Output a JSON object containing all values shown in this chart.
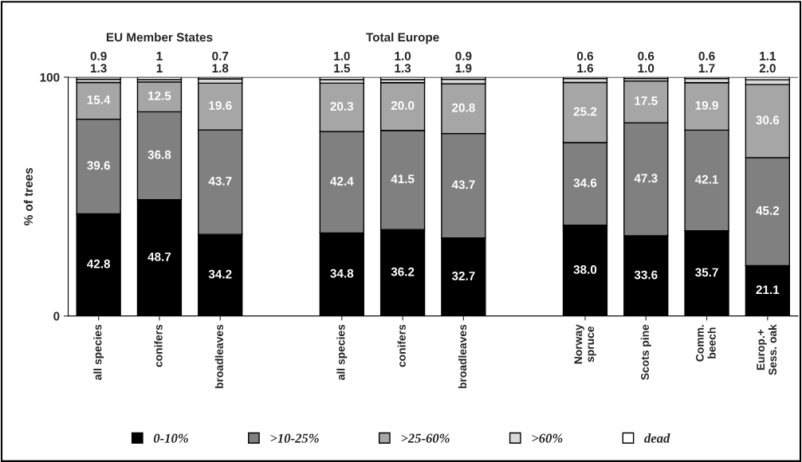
{
  "chart_data": {
    "type": "bar",
    "stacked": true,
    "ylabel": "% of trees",
    "ylim": [
      0,
      100
    ],
    "yticks": [
      0,
      100
    ],
    "grid": "y",
    "legend": "bottom",
    "categories": [
      "all species",
      "conifers",
      "broadleaves",
      null,
      "all species",
      "conifers",
      "broadleaves",
      null,
      "Norway\nspruce",
      "Scots pine",
      "Comm.\nbeech",
      "Europ.+\nSess. oak"
    ],
    "annotations": [
      "EU Member States",
      "Total Europe"
    ],
    "series": [
      {
        "name": "0-10%",
        "color": "#000000",
        "values": [
          42.8,
          48.7,
          34.2,
          null,
          34.8,
          36.2,
          32.7,
          null,
          38.0,
          33.6,
          35.7,
          21.1
        ],
        "value_labels": [
          "42.8",
          "48.7",
          "34.2",
          null,
          "34.8",
          "36.2",
          "32.7",
          null,
          "38.0",
          "33.6",
          "35.7",
          "21.1"
        ]
      },
      {
        "name": ">10-25%",
        "color": "#808080",
        "values": [
          39.6,
          36.8,
          43.7,
          null,
          42.4,
          41.5,
          43.7,
          null,
          34.6,
          47.3,
          42.1,
          45.2
        ],
        "value_labels": [
          "39.6",
          "36.8",
          "43.7",
          null,
          "42.4",
          "41.5",
          "43.7",
          null,
          "34.6",
          "47.3",
          "42.1",
          "45.2"
        ]
      },
      {
        "name": ">25-60%",
        "color": "#a6a6a6",
        "values": [
          15.4,
          12.5,
          19.6,
          null,
          20.3,
          20.0,
          20.8,
          null,
          25.2,
          17.5,
          19.9,
          30.6
        ],
        "value_labels": [
          "15.4",
          "12.5",
          "19.6",
          null,
          "20.3",
          "20.0",
          "20.8",
          null,
          "25.2",
          "17.5",
          "19.9",
          "30.6"
        ]
      },
      {
        "name": ">60%",
        "color": "#d9d9d9",
        "values": [
          1.3,
          1,
          1.8,
          null,
          1.5,
          1.3,
          1.9,
          null,
          1.6,
          1.0,
          1.7,
          2.0
        ],
        "value_labels": [
          "1.3",
          "1",
          "1.8",
          null,
          "1.5",
          "1.3",
          "1.9",
          null,
          "1.6",
          "1.0",
          "1.7",
          "2.0"
        ]
      },
      {
        "name": "dead",
        "color": "#ffffff",
        "values": [
          0.9,
          1,
          0.7,
          null,
          1.0,
          1.0,
          0.9,
          null,
          0.6,
          0.6,
          0.6,
          1.1
        ],
        "value_labels": [
          "0.9",
          "1",
          "0.7",
          null,
          "1.0",
          "1.0",
          "0.9",
          null,
          "0.6",
          "0.6",
          "0.6",
          "1.1"
        ]
      }
    ]
  }
}
